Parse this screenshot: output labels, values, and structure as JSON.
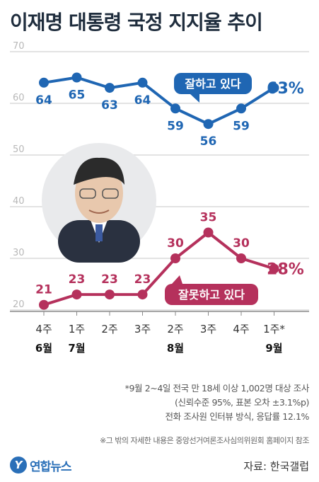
{
  "title": "이재명 대통령 국정 지지율 추이",
  "chart_data": {
    "type": "line",
    "title": "이재명 대통령 국정 지지율 추이",
    "categories": [
      "4주",
      "1주",
      "2주",
      "3주",
      "2주",
      "3주",
      "4주",
      "1주*"
    ],
    "month_labels": [
      "6월",
      "7월",
      "",
      "",
      "8월",
      "",
      "",
      "9월"
    ],
    "ylim": [
      20,
      70
    ],
    "yticks": [
      20,
      30,
      40,
      50,
      60,
      70
    ],
    "grid": true,
    "series": [
      {
        "name": "잘하고 있다",
        "values": [
          64,
          65,
          63,
          64,
          59,
          56,
          59,
          63
        ],
        "last_label": "63%",
        "color": "#1f66b3"
      },
      {
        "name": "잘못하고 있다",
        "values": [
          21,
          23,
          23,
          23,
          30,
          35,
          30,
          28
        ],
        "last_label": "28%",
        "color": "#b5315c"
      }
    ]
  },
  "notes": [
    "*9월 2~4일 전국 만 18세 이상 1,002명 대상 조사",
    "(신뢰수준 95%, 표본 오차 ±3.1%p)",
    "전화 조사원 인터뷰 방식, 응답률 12.1%"
  ],
  "note_extra": "※그 밖의 자세한 내용은 중앙선거여론조사심의위원회 홈페이지 참조",
  "logo_text": "연합뉴스",
  "logo_mark": "Y",
  "source": "자료: 한국갤럽",
  "colors": {
    "approve": "#1f66b3",
    "disapprove": "#b5315c",
    "grid": "#e3e3e3"
  }
}
